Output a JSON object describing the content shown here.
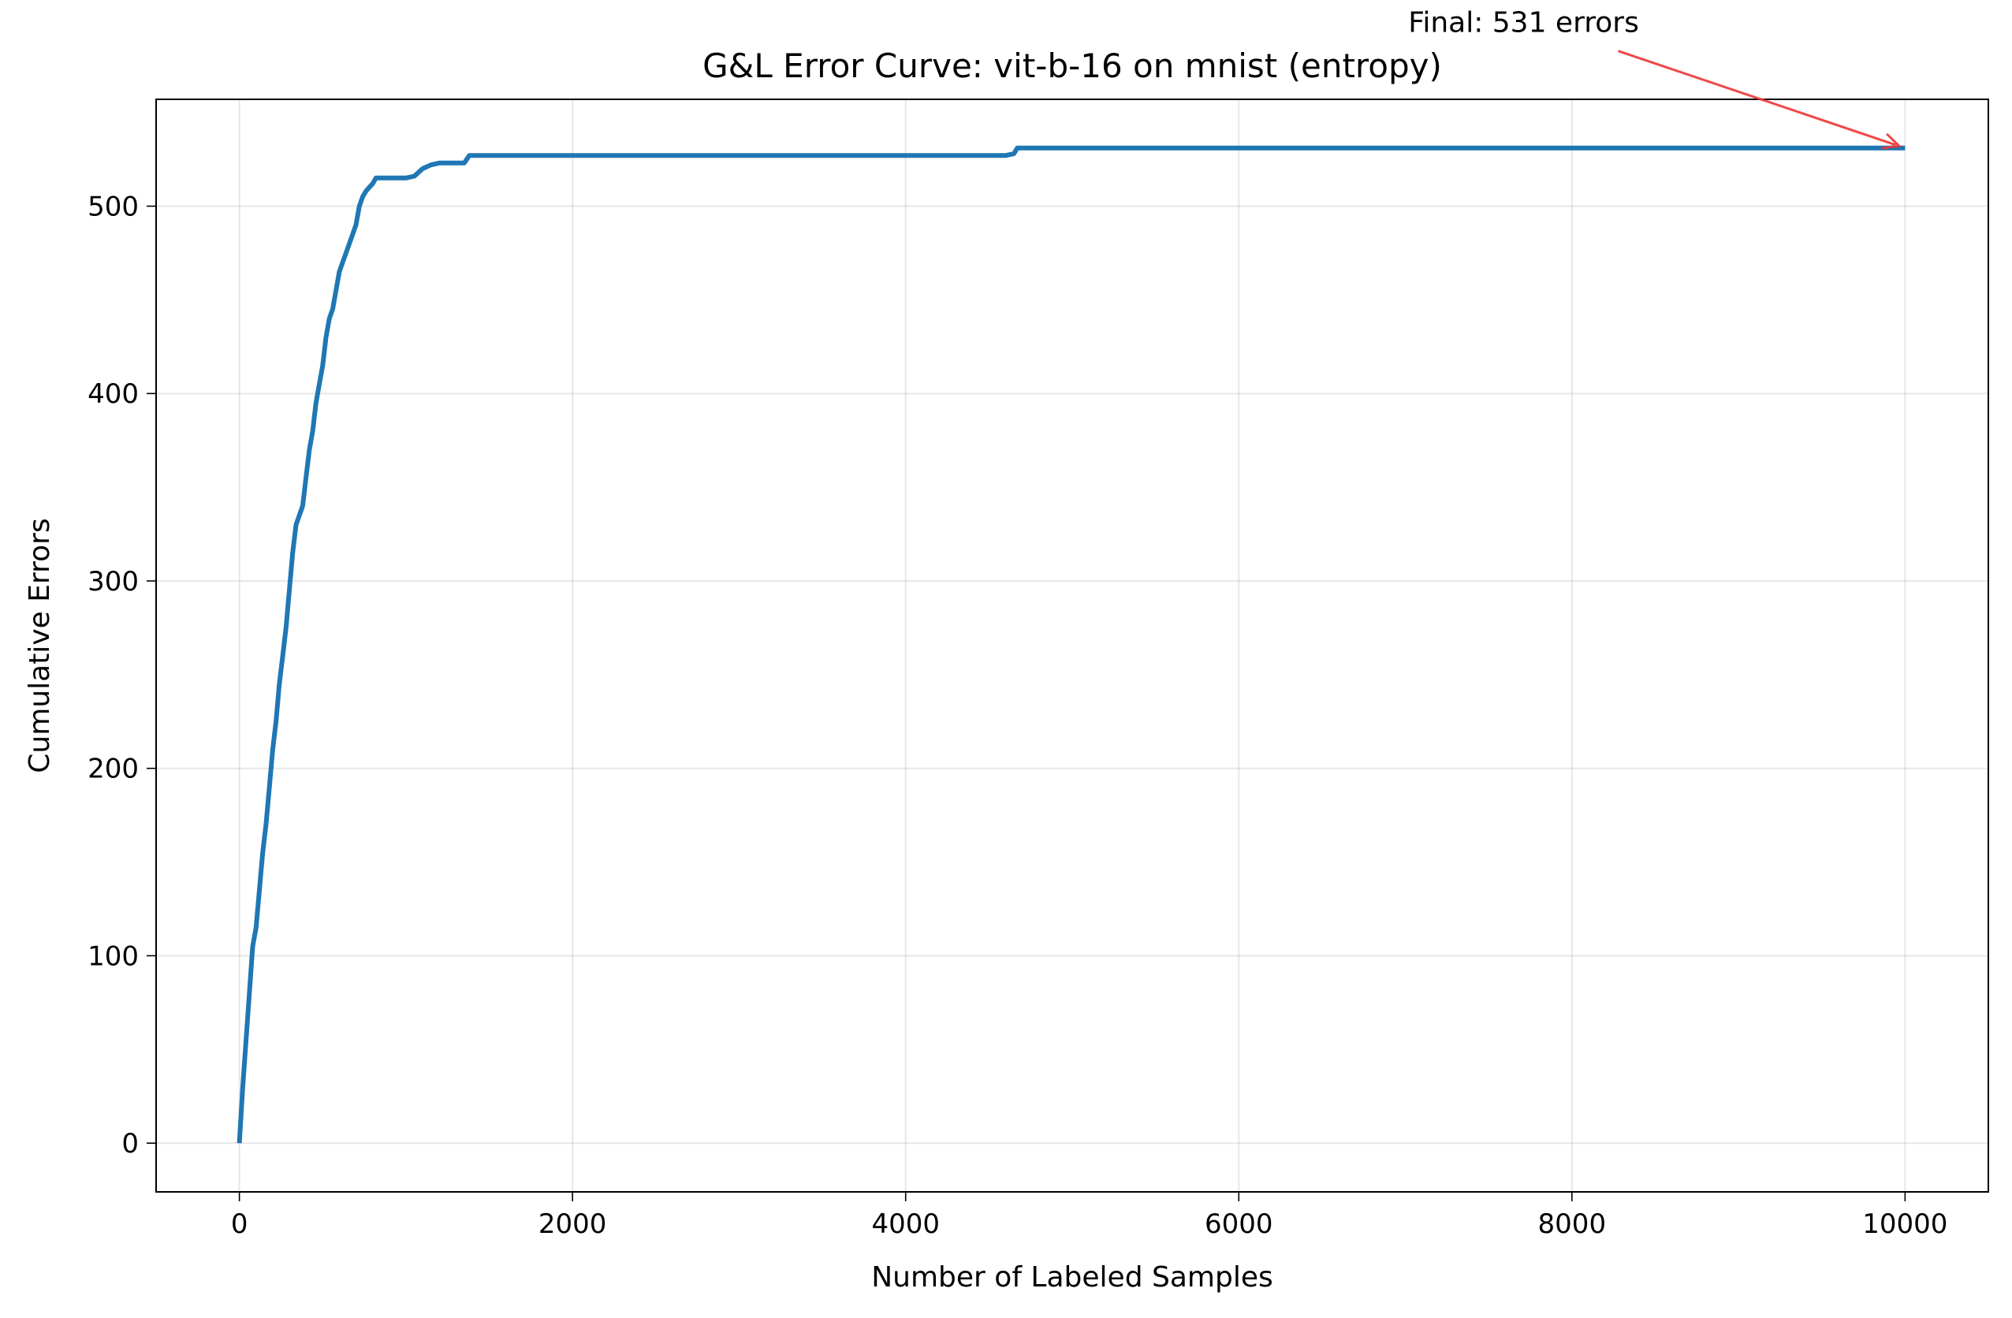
{
  "chart_data": {
    "type": "line",
    "title": "G&L Error Curve: vit-b-16 on mnist (entropy)",
    "xlabel": "Number of Labeled Samples",
    "ylabel": "Cumulative Errors",
    "xlim": [
      -500,
      10500
    ],
    "ylim": [
      -26,
      557
    ],
    "xticks": [
      0,
      2000,
      4000,
      6000,
      8000,
      10000
    ],
    "yticks": [
      0,
      100,
      200,
      300,
      400,
      500
    ],
    "xtick_labels": [
      "0",
      "2000",
      "4000",
      "6000",
      "8000",
      "10000"
    ],
    "ytick_labels": [
      "0",
      "100",
      "200",
      "300",
      "400",
      "500"
    ],
    "grid": true,
    "line_color": "#1f77b4",
    "annotation_color": "#ee3333",
    "series": [
      {
        "x": [
          0,
          20,
          40,
          60,
          80,
          100,
          120,
          140,
          160,
          180,
          200,
          220,
          240,
          260,
          280,
          300,
          320,
          340,
          360,
          380,
          400,
          420,
          440,
          460,
          480,
          500,
          520,
          540,
          560,
          580,
          600,
          620,
          640,
          660,
          680,
          700,
          720,
          740,
          760,
          780,
          800,
          820,
          840,
          860,
          880,
          900,
          920,
          940,
          960,
          980,
          1000,
          1050,
          1100,
          1150,
          1200,
          1250,
          1300,
          1350,
          1380,
          1400,
          2000,
          3000,
          4000,
          4600,
          4650,
          4670,
          5000,
          6000,
          7000,
          8000,
          9000,
          10000
        ],
        "y": [
          0,
          30,
          55,
          80,
          105,
          115,
          135,
          155,
          170,
          190,
          210,
          225,
          245,
          260,
          275,
          295,
          315,
          330,
          335,
          340,
          355,
          370,
          380,
          395,
          405,
          415,
          430,
          440,
          445,
          455,
          465,
          470,
          475,
          480,
          485,
          490,
          500,
          505,
          508,
          510,
          512,
          515,
          515,
          515,
          515,
          515,
          515,
          515,
          515,
          515,
          515,
          516,
          520,
          522,
          523,
          523,
          523,
          523,
          527,
          527,
          527,
          527,
          527,
          527,
          528,
          531,
          531,
          531,
          531,
          531,
          531,
          531
        ]
      }
    ],
    "annotation": {
      "text": "Final: 531 errors",
      "point": [
        10000,
        531
      ],
      "text_pos": [
        7000,
        587
      ]
    }
  }
}
